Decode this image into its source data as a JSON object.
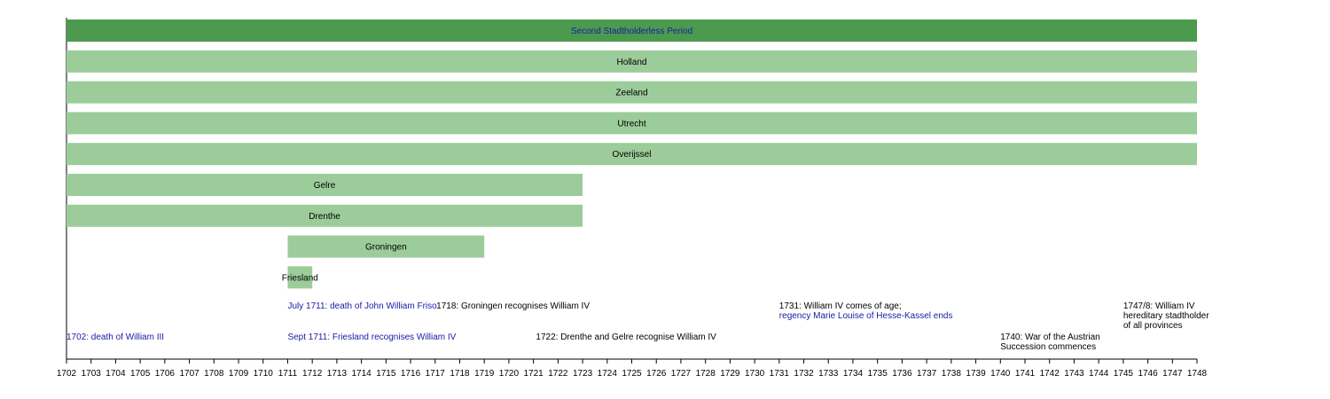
{
  "chart_data": {
    "type": "timeline",
    "xlim": [
      1702,
      1748
    ],
    "colors": {
      "period": "#4c9a4e",
      "province": "#9ccc9a",
      "blue_text": "#1a1aa6",
      "black_text": "#000000"
    },
    "bars": [
      {
        "label": "Second Stadtholderless Period",
        "start": 1702,
        "end": 1748,
        "style": "period"
      },
      {
        "label": "Holland",
        "start": 1702,
        "end": 1748,
        "style": "province"
      },
      {
        "label": "Zeeland",
        "start": 1702,
        "end": 1748,
        "style": "province"
      },
      {
        "label": "Utrecht",
        "start": 1702,
        "end": 1748,
        "style": "province"
      },
      {
        "label": "Overijssel",
        "start": 1702,
        "end": 1748,
        "style": "province"
      },
      {
        "label": "Gelre",
        "start": 1702,
        "end": 1723,
        "style": "province"
      },
      {
        "label": "Drenthe",
        "start": 1702,
        "end": 1723,
        "style": "province"
      },
      {
        "label": "Groningen",
        "start": 1711,
        "end": 1719,
        "style": "province"
      },
      {
        "label": "Friesland",
        "start": 1711,
        "end": 1712,
        "style": "province"
      }
    ],
    "events": [
      {
        "at": 1711,
        "row": 0,
        "lines": [
          "July 1711: death of John William Friso"
        ],
        "blue": [
          true
        ]
      },
      {
        "at": 1717.05,
        "row": 0,
        "lines": [
          "1718: Groningen recognises William IV"
        ],
        "blue": [
          false
        ]
      },
      {
        "at": 1731,
        "row": 0,
        "lines": [
          "1731: William IV comes of age;",
          "regency Marie Louise of Hesse-Kassel ends"
        ],
        "blue": [
          false,
          true
        ]
      },
      {
        "at": 1745,
        "row": 0,
        "lines": [
          "1747/8: William IV",
          "hereditary stadtholder",
          "of all provinces"
        ],
        "blue": [
          false,
          false,
          false
        ]
      },
      {
        "at": 1702,
        "row": 1,
        "lines": [
          "1702: death of William III"
        ],
        "blue": [
          true
        ]
      },
      {
        "at": 1711,
        "row": 1,
        "lines": [
          "Sept 1711: Friesland recognises William IV"
        ],
        "blue": [
          true
        ]
      },
      {
        "at": 1721.1,
        "row": 1,
        "lines": [
          "1722: Drenthe and Gelre recognise William IV"
        ],
        "blue": [
          false
        ]
      },
      {
        "at": 1740,
        "row": 1,
        "lines": [
          "1740: War of the Austrian",
          "Succession commences"
        ],
        "blue": [
          false,
          false
        ]
      }
    ],
    "ticks": [
      1702,
      1703,
      1704,
      1705,
      1706,
      1707,
      1708,
      1709,
      1710,
      1711,
      1712,
      1713,
      1714,
      1715,
      1716,
      1717,
      1718,
      1719,
      1720,
      1721,
      1722,
      1723,
      1724,
      1725,
      1726,
      1727,
      1728,
      1729,
      1730,
      1731,
      1732,
      1733,
      1734,
      1735,
      1736,
      1737,
      1738,
      1739,
      1740,
      1741,
      1742,
      1743,
      1744,
      1745,
      1746,
      1747,
      1748
    ]
  }
}
